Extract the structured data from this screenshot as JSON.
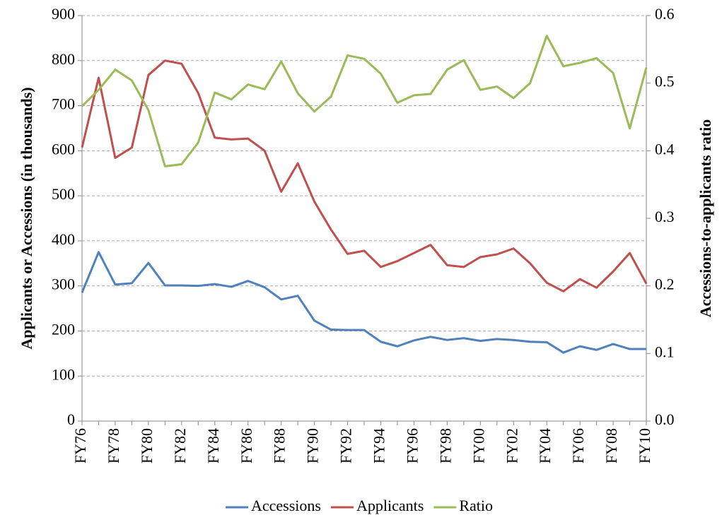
{
  "chart_data": {
    "type": "line",
    "y_label": "Applicants or Accessions (in thousands)",
    "y2_label": "Accessions-to-applicants ratio",
    "categories": [
      "FY76",
      null,
      "FY78",
      null,
      "FY80",
      null,
      "FY82",
      null,
      "FY84",
      null,
      "FY86",
      null,
      "FY88",
      null,
      "FY90",
      null,
      "FY92",
      null,
      "FY94",
      null,
      "FY96",
      null,
      "FY98",
      null,
      "FY00",
      null,
      "FY02",
      null,
      "FY04",
      null,
      "FY06",
      null,
      "FY08",
      null,
      "FY10"
    ],
    "series": [
      {
        "name": "Accessions",
        "color": "#4f81bd",
        "values": [
          285,
          375,
          303,
          306,
          351,
          301,
          301,
          300,
          304,
          298,
          311,
          297,
          270,
          278,
          223,
          203,
          202,
          202,
          176,
          166,
          179,
          187,
          180,
          184,
          178,
          182,
          180,
          176,
          175,
          152,
          166,
          158,
          171,
          160,
          160
        ]
      },
      {
        "name": "Applicants",
        "color": "#c0504d",
        "values": [
          607,
          762,
          584,
          607,
          768,
          800,
          793,
          728,
          629,
          625,
          627,
          600,
          509,
          572,
          487,
          425,
          371,
          378,
          342,
          355,
          373,
          391,
          346,
          342,
          364,
          370,
          383,
          350,
          307,
          288,
          315,
          296,
          332,
          373,
          305
        ]
      },
      {
        "name": "Ratio",
        "color": "#9bbb59",
        "axis": "y2",
        "values": [
          0.466,
          0.49,
          0.52,
          0.504,
          0.46,
          0.377,
          0.38,
          0.412,
          0.486,
          0.476,
          0.498,
          0.491,
          0.532,
          0.485,
          0.458,
          0.48,
          0.541,
          0.536,
          0.514,
          0.471,
          0.482,
          0.484,
          0.52,
          0.534,
          0.49,
          0.495,
          0.478,
          0.5,
          0.57,
          0.525,
          0.53,
          0.537,
          0.515,
          0.433,
          0.523
        ]
      }
    ],
    "ylim": [
      0,
      900
    ],
    "yticks": [
      0,
      100,
      200,
      300,
      400,
      500,
      600,
      700,
      800,
      900
    ],
    "y2lim": [
      0,
      0.6
    ],
    "y2ticks": [
      {
        "value": 0,
        "label": "0.0"
      },
      0.1,
      0.2,
      0.3,
      0.4,
      0.5,
      0.6
    ],
    "grid": true,
    "legend": "bottom"
  }
}
